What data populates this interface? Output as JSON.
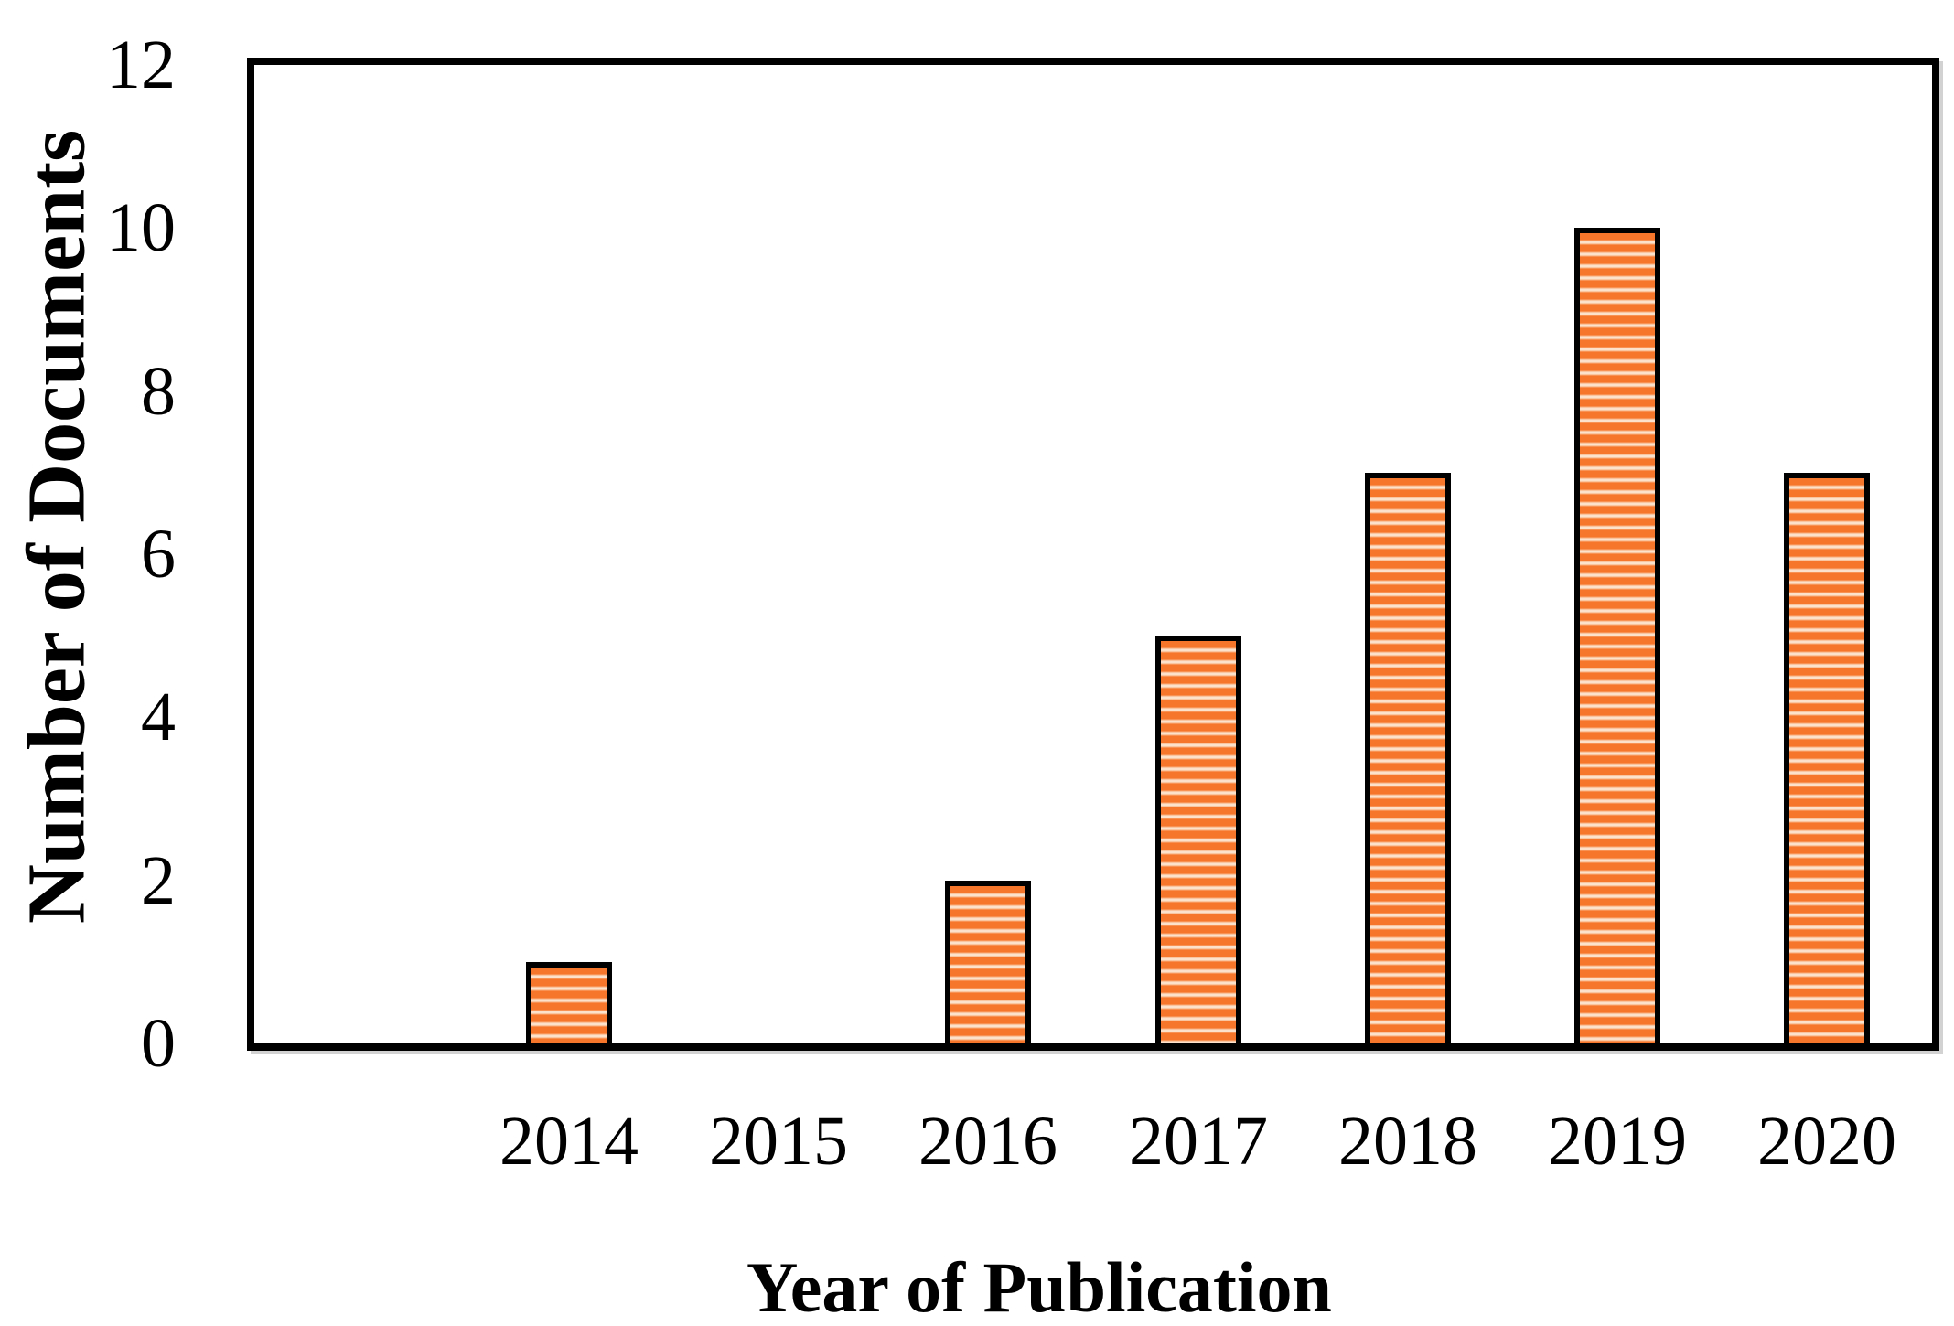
{
  "figure": {
    "background": "#ffffff"
  },
  "chart_data": {
    "type": "bar",
    "title": "",
    "xlabel": "Year of Publication",
    "ylabel": "Number of Documents",
    "categories": [
      "2014",
      "2015",
      "2016",
      "2017",
      "2018",
      "2019",
      "2020"
    ],
    "values": [
      1,
      0,
      2,
      5,
      7,
      10,
      7
    ],
    "ylim": [
      0,
      12
    ],
    "yticks": [
      0,
      2,
      4,
      6,
      8,
      10,
      12
    ],
    "grid": false,
    "legend": "none",
    "leading_empty_slots": 1,
    "bar_style": {
      "pattern": "horizontal-stripes",
      "stripe_color": "#f6772b",
      "stripe_edge": "#f9c9a6",
      "stripe_light": "#fdeede",
      "bar_border_color": "#000000",
      "frame_color": "#000000"
    }
  }
}
